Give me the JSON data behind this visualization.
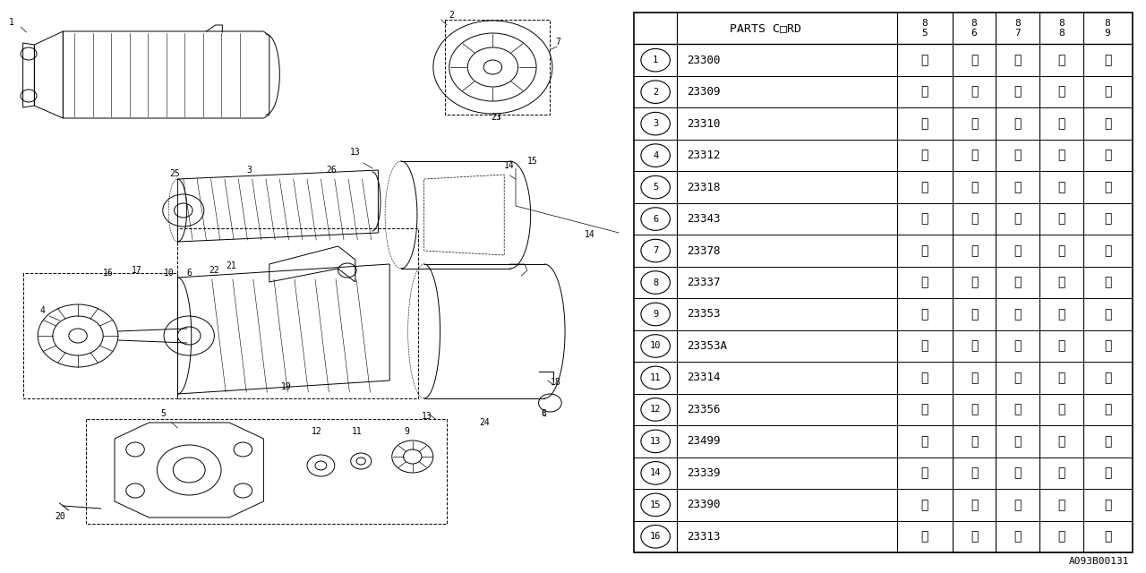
{
  "title": "",
  "table_header": "PARTS C□RD",
  "col_headers": [
    [
      "8",
      "5"
    ],
    [
      "8",
      "6"
    ],
    [
      "8",
      "7"
    ],
    [
      "8",
      "8"
    ],
    [
      "8",
      "9"
    ]
  ],
  "rows": [
    {
      "num": "1",
      "code": "23300",
      "marks": [
        "※",
        "※",
        "※",
        "※",
        "※"
      ]
    },
    {
      "num": "2",
      "code": "23309",
      "marks": [
        "※",
        "※",
        "※",
        "※",
        "※"
      ]
    },
    {
      "num": "3",
      "code": "23310",
      "marks": [
        "※",
        "※",
        "※",
        "※",
        "※"
      ]
    },
    {
      "num": "4",
      "code": "23312",
      "marks": [
        "※",
        "※",
        "※",
        "※",
        "※"
      ]
    },
    {
      "num": "5",
      "code": "23318",
      "marks": [
        "※",
        "※",
        "※",
        "※",
        "※"
      ]
    },
    {
      "num": "6",
      "code": "23343",
      "marks": [
        "※",
        "※",
        "※",
        "※",
        "※"
      ]
    },
    {
      "num": "7",
      "code": "23378",
      "marks": [
        "※",
        "※",
        "※",
        "※",
        "※"
      ]
    },
    {
      "num": "8",
      "code": "23337",
      "marks": [
        "※",
        "※",
        "※",
        "※",
        "※"
      ]
    },
    {
      "num": "9",
      "code": "23353",
      "marks": [
        "※",
        "※",
        "※",
        "※",
        "※"
      ]
    },
    {
      "num": "10",
      "code": "23353A",
      "marks": [
        "※",
        "※",
        "※",
        "※",
        "※"
      ]
    },
    {
      "num": "11",
      "code": "23314",
      "marks": [
        "※",
        "※",
        "※",
        "※",
        "※"
      ]
    },
    {
      "num": "12",
      "code": "23356",
      "marks": [
        "※",
        "※",
        "※",
        "※",
        "※"
      ]
    },
    {
      "num": "13",
      "code": "23499",
      "marks": [
        "※",
        "※",
        "※",
        "※",
        "※"
      ]
    },
    {
      "num": "14",
      "code": "23339",
      "marks": [
        "※",
        "※",
        "※",
        "※",
        "※"
      ]
    },
    {
      "num": "15",
      "code": "23390",
      "marks": [
        "※",
        "※",
        "※",
        "※",
        "※"
      ]
    },
    {
      "num": "16",
      "code": "23313",
      "marks": [
        "※",
        "※",
        "※",
        "※",
        "※"
      ]
    }
  ],
  "bg_color": "#ffffff",
  "line_color": "#000000",
  "text_color": "#000000",
  "ref_code": "A093B00131"
}
